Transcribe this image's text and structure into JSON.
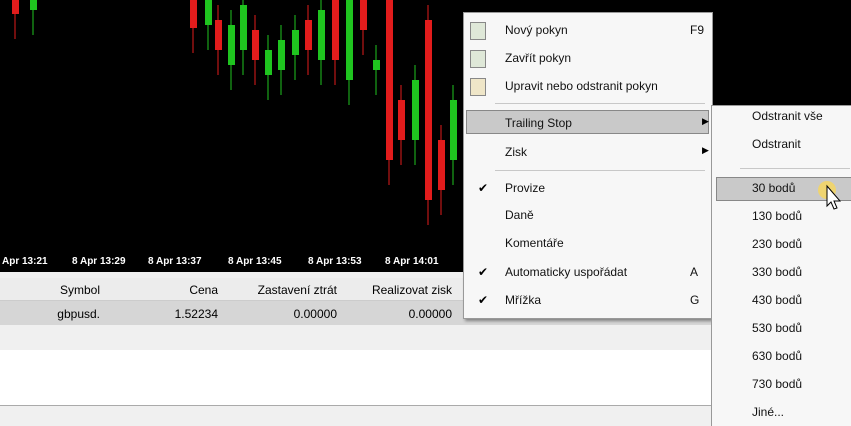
{
  "chart": {
    "time_labels": [
      "Apr 13:21",
      "8 Apr 13:29",
      "8 Apr 13:37",
      "8 Apr 13:45",
      "8 Apr 13:53",
      "8 Apr 14:01"
    ]
  },
  "table": {
    "headers": [
      "Symbol",
      "Cena",
      "Zastavení ztrát",
      "Realizovat zisk"
    ],
    "rows": [
      [
        "gbpusd.",
        "1.52234",
        "0.00000",
        "0.00000"
      ]
    ]
  },
  "menu": {
    "items": [
      {
        "label": "Nový pokyn",
        "shortcut": "F9"
      },
      {
        "label": "Zavřít pokyn"
      },
      {
        "label": "Upravit nebo odstranit pokyn"
      },
      {
        "label": "Trailing Stop"
      },
      {
        "label": "Zisk"
      },
      {
        "label": "Provize"
      },
      {
        "label": "Daně"
      },
      {
        "label": "Komentáře"
      },
      {
        "label": "Automaticky uspořádat",
        "shortcut": "A"
      },
      {
        "label": "Mřížka",
        "shortcut": "G"
      }
    ]
  },
  "submenu": {
    "items": [
      "Odstranit vše",
      "Odstranit",
      "30 bodů",
      "130 bodů",
      "230 bodů",
      "330 bodů",
      "430 bodů",
      "530 bodů",
      "630 bodů",
      "730 bodů",
      "Jiné..."
    ]
  }
}
